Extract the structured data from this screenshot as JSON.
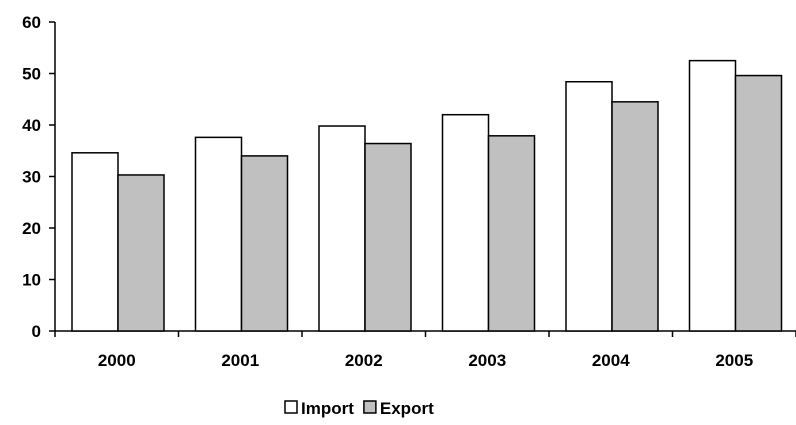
{
  "chart_data": {
    "type": "bar",
    "categories": [
      "2000",
      "2001",
      "2002",
      "2003",
      "2004",
      "2005"
    ],
    "series": [
      {
        "name": "Import",
        "values": [
          34.6,
          37.6,
          39.8,
          42.0,
          48.4,
          52.5
        ],
        "color": "#ffffff"
      },
      {
        "name": "Export",
        "values": [
          30.3,
          34.0,
          36.4,
          37.9,
          44.5,
          49.6
        ],
        "color": "#c0c0c0"
      }
    ],
    "ylim": [
      0,
      60
    ],
    "yticks": [
      0,
      10,
      20,
      30,
      40,
      50,
      60
    ],
    "grid": false,
    "legend_position": "bottom-center"
  }
}
